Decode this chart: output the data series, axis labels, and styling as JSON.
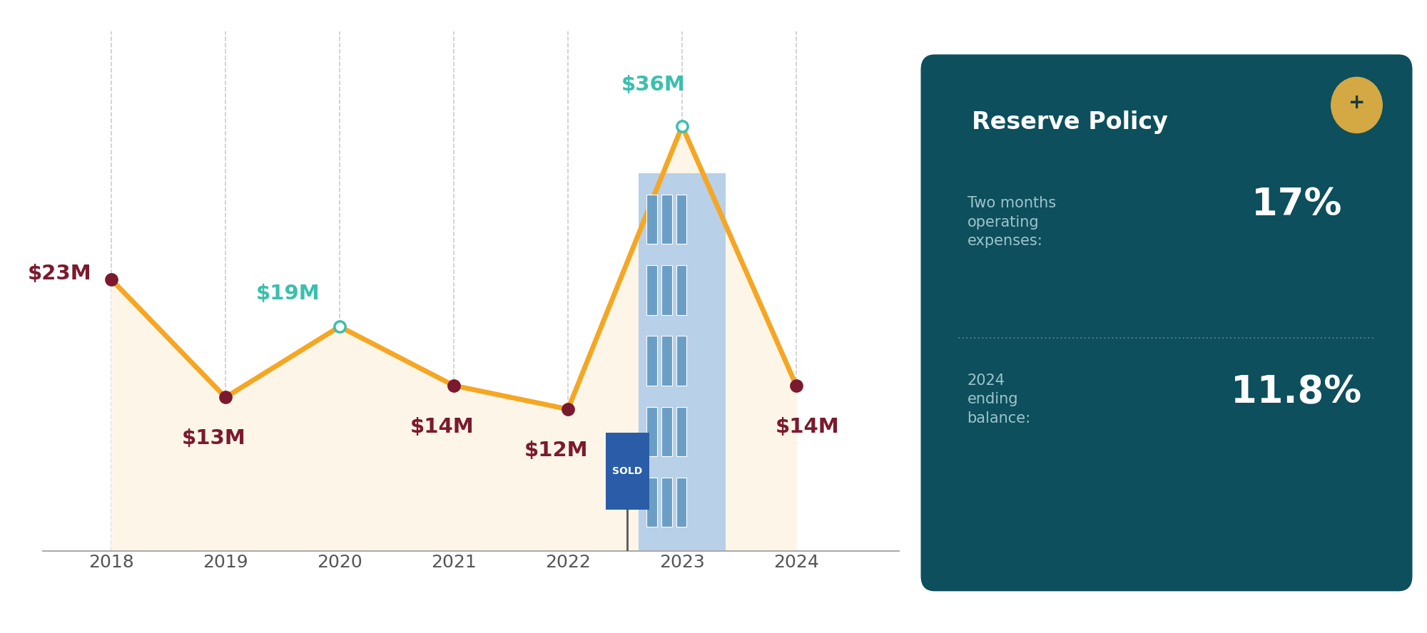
{
  "years": [
    2018,
    2019,
    2020,
    2021,
    2022,
    2023,
    2024
  ],
  "values": [
    23,
    13,
    19,
    14,
    12,
    36,
    14
  ],
  "labels": [
    "$23M",
    "$13M",
    "$19M",
    "$14M",
    "$12M",
    "$36M",
    "$14M"
  ],
  "label_colors": [
    "#7b1a2e",
    "#7b1a2e",
    "#3bbfad",
    "#7b1a2e",
    "#7b1a2e",
    "#3bbfad",
    "#7b1a2e"
  ],
  "marker_fill": [
    "#7b1a2e",
    "#7b1a2e",
    "#ffffff",
    "#7b1a2e",
    "#7b1a2e",
    "#ffffff",
    "#7b1a2e"
  ],
  "marker_edge": [
    "#7b1a2e",
    "#7b1a2e",
    "#3bbfad",
    "#7b1a2e",
    "#7b1a2e",
    "#3bbfad",
    "#7b1a2e"
  ],
  "label_above": [
    false,
    false,
    true,
    false,
    false,
    true,
    false
  ],
  "line_color": "#f5a623",
  "fill_color": "#fdf6e8",
  "bg_color": "#ffffff",
  "card_bg": "#0d4f5c",
  "card_title": "Reserve Policy",
  "card_row1_label": "Two months\noperating\nexpenses:",
  "card_row1_value": "17%",
  "card_row2_label": "2024\nending\nbalance:",
  "card_row2_value": "11.8%",
  "ylim_min": 0,
  "ylim_max": 44,
  "label_offsets_x": [
    -0.45,
    -0.1,
    -0.45,
    -0.1,
    -0.1,
    -0.25,
    0.1
  ],
  "label_offsets_y": [
    0.5,
    -3.5,
    2.8,
    -3.5,
    -3.5,
    3.5,
    -3.5
  ]
}
